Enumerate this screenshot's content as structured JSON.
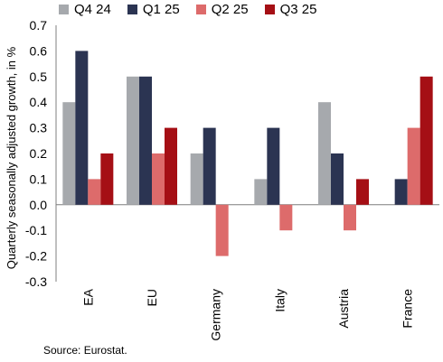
{
  "chart_data": {
    "type": "bar",
    "title": "",
    "ylabel": "Quarterly seasonally adjusted growth, in %",
    "xlabel": "",
    "ylim": [
      -0.3,
      0.7
    ],
    "yticks": [
      0.7,
      0.6,
      0.5,
      0.4,
      0.3,
      0.2,
      0.1,
      0.0,
      -0.1,
      -0.2,
      -0.3
    ],
    "ytick_labels": [
      "0.7",
      "0.6",
      "0.5",
      "0.4",
      "0.3",
      "0.2",
      "0.1",
      "0.0",
      "-0.1",
      "-0.2",
      "-0.3"
    ],
    "categories": [
      "EA",
      "EU",
      "Germany",
      "Italy",
      "Austria",
      "France"
    ],
    "legend_position": "top",
    "grid": false,
    "series": [
      {
        "name": "Q4 24",
        "color": "#a6a9ad",
        "values": [
          0.4,
          0.5,
          0.2,
          0.1,
          0.4,
          0.0
        ]
      },
      {
        "name": "Q1 25",
        "color": "#2b3452",
        "values": [
          0.6,
          0.5,
          0.3,
          0.3,
          0.2,
          0.1
        ]
      },
      {
        "name": "Q2 25",
        "color": "#dd6b6b",
        "values": [
          0.1,
          0.2,
          -0.2,
          -0.1,
          -0.1,
          0.3
        ]
      },
      {
        "name": "Q3 25",
        "color": "#a50f15",
        "values": [
          0.2,
          0.3,
          0.0,
          0.0,
          0.1,
          0.5
        ]
      }
    ]
  },
  "source": "Source: Eurostat."
}
